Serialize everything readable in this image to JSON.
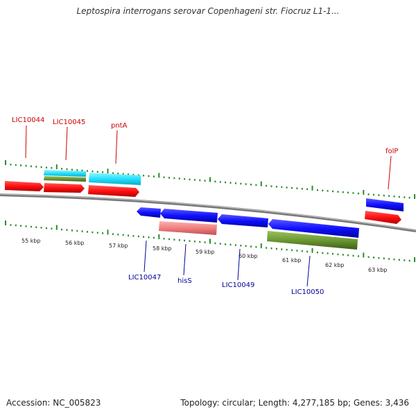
{
  "title": "Leptospira interrogans serovar Copenhageni str. Fiocruz L1-1...",
  "footer": {
    "accession": "Accession: NC_005823",
    "summary": "Topology: circular; Length: 4,277,185 bp; Genes: 3,436"
  },
  "colors": {
    "forward_cds": "#ff1a1a",
    "reverse_cds": "#1a1aff",
    "cyan_feature": "#33e6ff",
    "olive_feature": "#6b9933",
    "pink_feature": "#f08080",
    "tick": "#2a8a2a",
    "backbone": "#888888",
    "label_top": "#cc0000",
    "label_bottom": "#000099"
  },
  "ticks": [
    "55 kbp",
    "56 kbp",
    "57 kbp",
    "58 kbp",
    "59 kbp",
    "60 kbp",
    "61 kbp",
    "62 kbp",
    "63 kbp"
  ],
  "gene_labels": {
    "top": [
      "LIC10044",
      "LIC10045",
      "pntA",
      "folP"
    ],
    "bottom": [
      "LIC10047",
      "hisS",
      "LIC10049",
      "LIC10050"
    ]
  }
}
